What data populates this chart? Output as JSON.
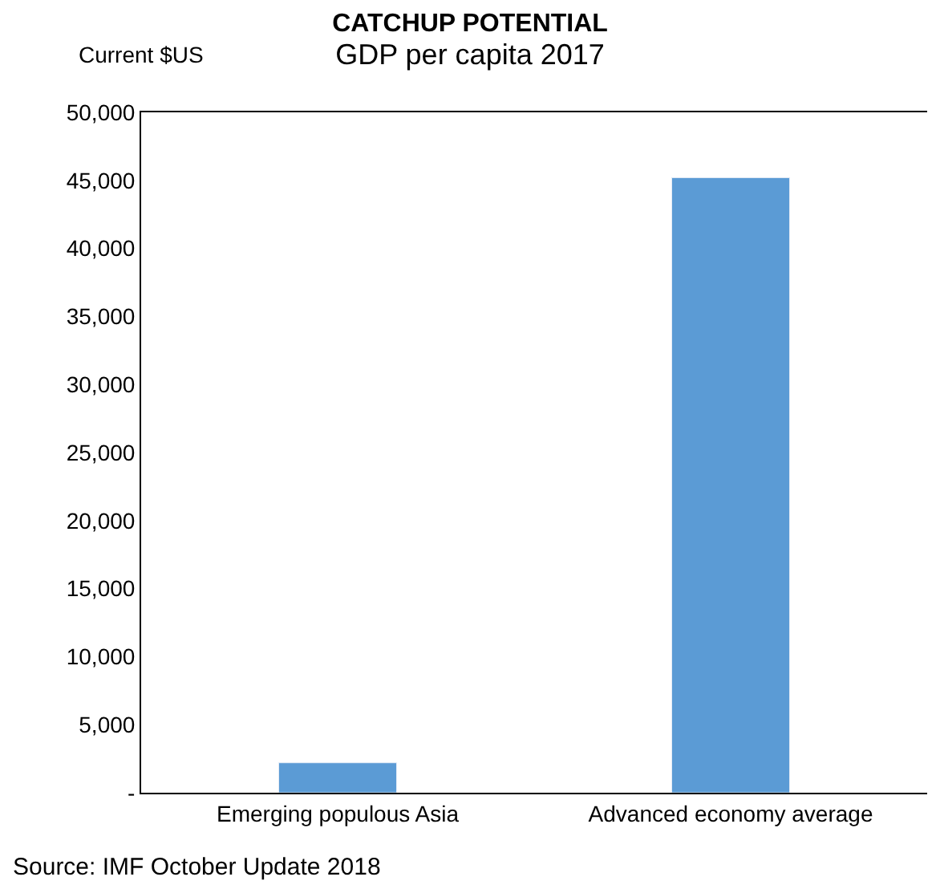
{
  "chart_data": {
    "type": "bar",
    "title": "CATCHUP POTENTIAL",
    "subtitle": "GDP per capita 2017",
    "ylabel": "Current $US",
    "categories": [
      "Emerging populous Asia",
      "Advanced economy average"
    ],
    "values": [
      2200,
      45200
    ],
    "color": "#5b9bd5",
    "ylim": [
      0,
      50000
    ],
    "yticks": [
      {
        "value": 0,
        "label": "-"
      },
      {
        "value": 5000,
        "label": "5,000"
      },
      {
        "value": 10000,
        "label": "10,000"
      },
      {
        "value": 15000,
        "label": "15,000"
      },
      {
        "value": 20000,
        "label": "20,000"
      },
      {
        "value": 25000,
        "label": "25,000"
      },
      {
        "value": 30000,
        "label": "30,000"
      },
      {
        "value": 35000,
        "label": "35,000"
      },
      {
        "value": 40000,
        "label": "40,000"
      },
      {
        "value": 45000,
        "label": "45,000"
      },
      {
        "value": 50000,
        "label": "50,000"
      }
    ],
    "annotations": [
      "Source: IMF October Update 2018"
    ]
  }
}
